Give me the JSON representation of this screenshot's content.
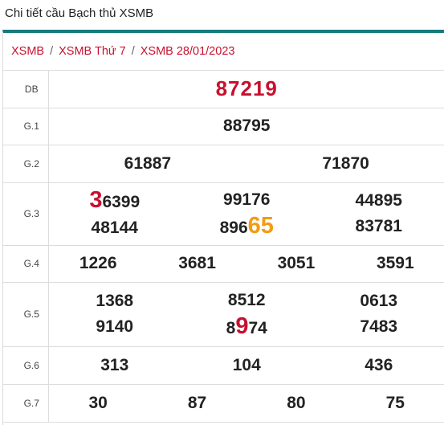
{
  "page": {
    "title": "Chi tiết cầu Bạch thủ XSMB"
  },
  "breadcrumb": {
    "items": [
      "XSMB",
      "XSMB Thứ 7",
      "XSMB 28/01/2023"
    ],
    "separator": "/"
  },
  "prizes": {
    "db": {
      "label": "DB",
      "values": [
        "87219"
      ]
    },
    "g1": {
      "label": "G.1",
      "values": [
        "88795"
      ]
    },
    "g2": {
      "label": "G.2",
      "values": [
        "61887",
        "71870"
      ]
    },
    "g3": {
      "label": "G.3",
      "values": [
        "36399",
        "99176",
        "44895",
        "48144",
        "89665",
        "83781"
      ]
    },
    "g4": {
      "label": "G.4",
      "values": [
        "1226",
        "3681",
        "3051",
        "3591"
      ]
    },
    "g5": {
      "label": "G.5",
      "values": [
        "1368",
        "8512",
        "0613",
        "9140",
        "8974",
        "7483"
      ]
    },
    "g6": {
      "label": "G.6",
      "values": [
        "313",
        "104",
        "436"
      ]
    },
    "g7": {
      "label": "G.7",
      "values": [
        "30",
        "87",
        "80",
        "75"
      ]
    }
  },
  "highlights": {
    "g3_0": {
      "before": "",
      "mark": "3",
      "after": "6399",
      "color": "#c8102e"
    },
    "g3_4": {
      "before": "896",
      "mark": "65",
      "after": "",
      "color": "#f39c12"
    },
    "g5_4": {
      "before": "8",
      "mark": "9",
      "after": "74",
      "color": "#c8102e"
    }
  },
  "colors": {
    "accent": "#157a7e",
    "link": "#c8102e",
    "highlight_orange": "#f39c12"
  }
}
